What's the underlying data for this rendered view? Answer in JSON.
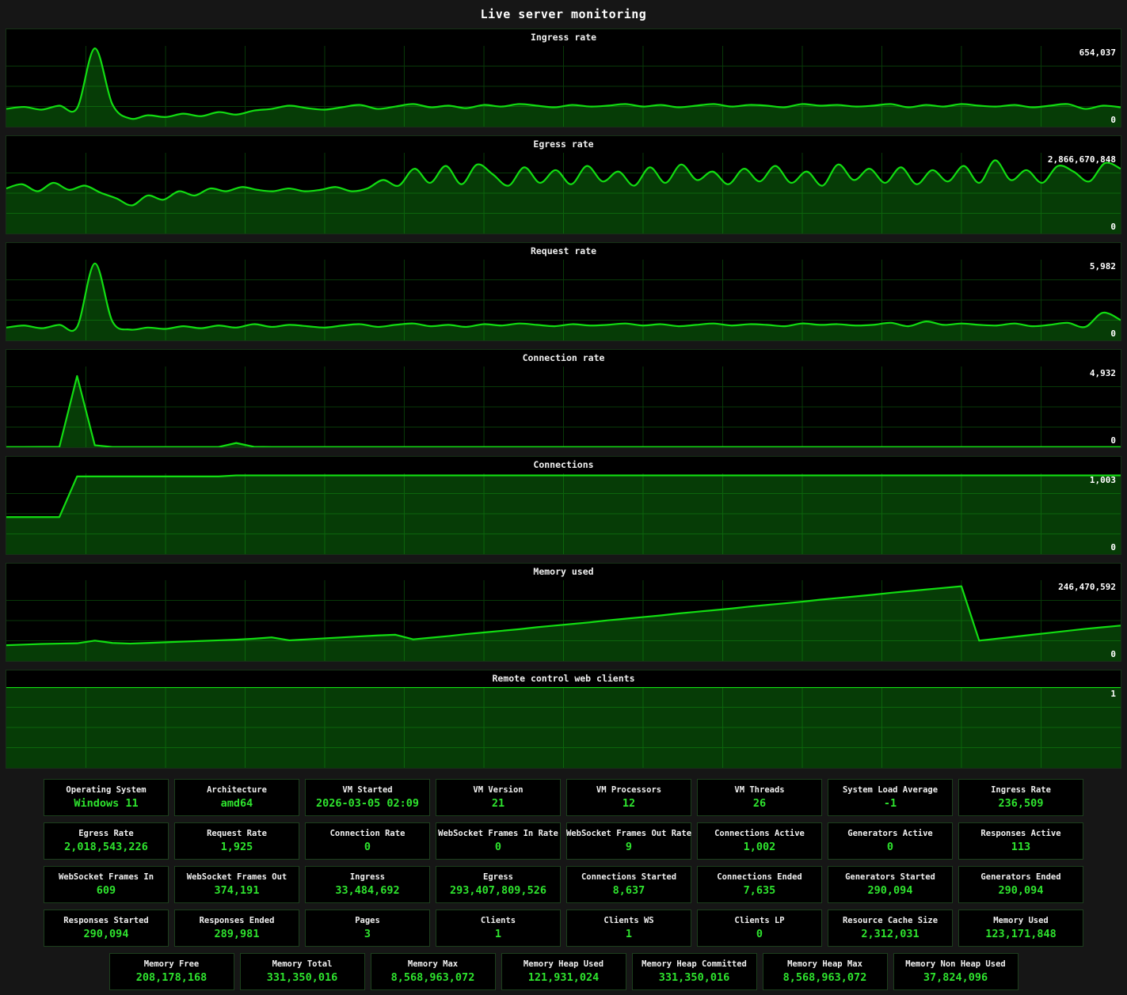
{
  "page": {
    "title": "Live server monitoring"
  },
  "colors": {
    "background": "#161616",
    "panel_bg": "#000000",
    "panel_border": "#163216",
    "line_green": "#12dd12",
    "fill_green": "#063c06",
    "grid_green": "rgba(30,220,30,0.26)",
    "value_green": "#2ee32e",
    "label_white": "#f0f0f0"
  },
  "chart_data": [
    {
      "type": "area",
      "title": "Ingress rate",
      "max_label": "654,037",
      "min_label": "0",
      "ymax": 654037,
      "ylim": [
        0,
        654037
      ],
      "grid": true,
      "smooth": true,
      "values": [
        144000,
        160000,
        138000,
        170000,
        150000,
        634000,
        180000,
        66000,
        92000,
        78000,
        105000,
        85000,
        118000,
        98000,
        130000,
        144000,
        170000,
        150000,
        138000,
        158000,
        176000,
        144000,
        163000,
        183000,
        157000,
        170000,
        150000,
        176000,
        163000,
        183000,
        170000,
        157000,
        176000,
        163000,
        170000,
        183000,
        163000,
        176000,
        157000,
        170000,
        183000,
        163000,
        176000,
        170000,
        157000,
        183000,
        170000,
        176000,
        163000,
        170000,
        183000,
        157000,
        176000,
        163000,
        183000,
        170000,
        163000,
        176000,
        157000,
        170000,
        183000,
        144000,
        170000,
        157000
      ]
    },
    {
      "type": "area",
      "title": "Egress rate",
      "max_label": "2,866,670,848",
      "min_label": "0",
      "ymax": 2866670848,
      "ylim": [
        0,
        2866670848
      ],
      "grid": true,
      "smooth": true,
      "values": [
        1600000000,
        1750000000,
        1500000000,
        1800000000,
        1550000000,
        1700000000,
        1450000000,
        1250000000,
        1000000000,
        1350000000,
        1200000000,
        1500000000,
        1350000000,
        1600000000,
        1500000000,
        1650000000,
        1550000000,
        1500000000,
        1600000000,
        1500000000,
        1550000000,
        1650000000,
        1500000000,
        1600000000,
        1900000000,
        1700000000,
        2300000000,
        1800000000,
        2400000000,
        1750000000,
        2450000000,
        2100000000,
        1700000000,
        2350000000,
        1800000000,
        2250000000,
        1750000000,
        2400000000,
        1850000000,
        2200000000,
        1700000000,
        2350000000,
        1800000000,
        2450000000,
        1900000000,
        2200000000,
        1750000000,
        2300000000,
        1850000000,
        2400000000,
        1800000000,
        2200000000,
        1700000000,
        2450000000,
        1900000000,
        2300000000,
        1800000000,
        2350000000,
        1750000000,
        2250000000,
        1850000000,
        2400000000,
        1800000000,
        2600000000,
        1900000000,
        2250000000,
        1800000000,
        2400000000,
        2200000000,
        1850000000,
        2500000000,
        2300000000
      ]
    },
    {
      "type": "area",
      "title": "Request rate",
      "max_label": "5,982",
      "min_label": "0",
      "ymax": 5982,
      "ylim": [
        0,
        5982
      ],
      "grid": true,
      "smooth": true,
      "values": [
        950,
        1100,
        900,
        1150,
        1000,
        5700,
        1400,
        800,
        950,
        850,
        1050,
        900,
        1100,
        950,
        1200,
        1000,
        1150,
        1050,
        950,
        1100,
        1200,
        1000,
        1150,
        1250,
        1050,
        1150,
        1000,
        1200,
        1100,
        1250,
        1150,
        1050,
        1200,
        1100,
        1150,
        1250,
        1100,
        1200,
        1050,
        1150,
        1250,
        1100,
        1200,
        1150,
        1050,
        1250,
        1150,
        1200,
        1100,
        1150,
        1300,
        1050,
        1400,
        1150,
        1250,
        1150,
        1100,
        1250,
        1050,
        1150,
        1300,
        1000,
        2050,
        1500
      ]
    },
    {
      "type": "area",
      "title": "Connection rate",
      "max_label": "4,932",
      "min_label": "0",
      "ymax": 4932,
      "ylim": [
        0,
        4932
      ],
      "grid": true,
      "smooth": false,
      "values": [
        15,
        15,
        18,
        20,
        4350,
        120,
        15,
        15,
        15,
        15,
        15,
        15,
        15,
        260,
        25,
        15,
        15,
        15,
        15,
        15,
        15,
        15,
        15,
        15,
        15,
        15,
        15,
        15,
        15,
        15,
        15,
        15,
        15,
        15,
        15,
        15,
        15,
        15,
        15,
        15,
        15,
        15,
        15,
        15,
        15,
        15,
        15,
        15,
        15,
        15,
        15,
        15,
        15,
        15,
        15,
        15,
        15,
        15,
        15,
        15,
        15,
        15,
        15,
        15
      ]
    },
    {
      "type": "area",
      "title": "Connections",
      "max_label": "1,003",
      "min_label": "0",
      "ymax": 1003,
      "ylim": [
        0,
        1003
      ],
      "grid": true,
      "smooth": false,
      "values": [
        460,
        460,
        460,
        460,
        965,
        965,
        965,
        965,
        965,
        965,
        965,
        965,
        965,
        978,
        978,
        978,
        978,
        978,
        978,
        978,
        978,
        978,
        978,
        978,
        978,
        978,
        978,
        978,
        978,
        978,
        978,
        978,
        978,
        978,
        978,
        978,
        978,
        978,
        978,
        978,
        978,
        978,
        978,
        978,
        978,
        978,
        978,
        978,
        978,
        978,
        978,
        978,
        978,
        978,
        978,
        978,
        978,
        978,
        978,
        978,
        978,
        978,
        978,
        978
      ]
    },
    {
      "type": "area",
      "title": "Memory used",
      "max_label": "246,470,592",
      "min_label": "0",
      "ymax": 246470592,
      "ylim": [
        0,
        246470592
      ],
      "grid": true,
      "smooth": false,
      "values": [
        48000000,
        50000000,
        52000000,
        53000000,
        54000000,
        62000000,
        55000000,
        53000000,
        55000000,
        57000000,
        59000000,
        61000000,
        63000000,
        65000000,
        68000000,
        72000000,
        63000000,
        66000000,
        69000000,
        72000000,
        75000000,
        78000000,
        80000000,
        66000000,
        71000000,
        76000000,
        82000000,
        87000000,
        92000000,
        97000000,
        103000000,
        108000000,
        113000000,
        118000000,
        124000000,
        129000000,
        134000000,
        139000000,
        145000000,
        150000000,
        155000000,
        160000000,
        166000000,
        171000000,
        176000000,
        181000000,
        187000000,
        192000000,
        197000000,
        202000000,
        208000000,
        213000000,
        218000000,
        223000000,
        228000000,
        62000000,
        68000000,
        74000000,
        80000000,
        86000000,
        92000000,
        98000000,
        103000000,
        108000000
      ]
    },
    {
      "type": "area",
      "title": "Remote control web clients",
      "max_label": "1",
      "min_label": "",
      "ymax": 1,
      "ylim": [
        0,
        1
      ],
      "grid": true,
      "smooth": false,
      "values": [
        1,
        1
      ]
    }
  ],
  "stats": {
    "rows": [
      [
        {
          "label": "Operating System",
          "value": "Windows 11"
        },
        {
          "label": "Architecture",
          "value": "amd64"
        },
        {
          "label": "VM Started",
          "value": "2026-03-05 02:09"
        },
        {
          "label": "VM Version",
          "value": "21"
        },
        {
          "label": "VM Processors",
          "value": "12"
        },
        {
          "label": "VM Threads",
          "value": "26"
        },
        {
          "label": "System Load Average",
          "value": "-1"
        },
        {
          "label": "Ingress Rate",
          "value": "236,509"
        }
      ],
      [
        {
          "label": "Egress Rate",
          "value": "2,018,543,226"
        },
        {
          "label": "Request Rate",
          "value": "1,925"
        },
        {
          "label": "Connection Rate",
          "value": "0"
        },
        {
          "label": "WebSocket Frames In Rate",
          "value": "0"
        },
        {
          "label": "WebSocket Frames Out Rate",
          "value": "9"
        },
        {
          "label": "Connections Active",
          "value": "1,002"
        },
        {
          "label": "Generators Active",
          "value": "0"
        },
        {
          "label": "Responses Active",
          "value": "113"
        }
      ],
      [
        {
          "label": "WebSocket Frames In",
          "value": "609"
        },
        {
          "label": "WebSocket Frames Out",
          "value": "374,191"
        },
        {
          "label": "Ingress",
          "value": "33,484,692"
        },
        {
          "label": "Egress",
          "value": "293,407,809,526"
        },
        {
          "label": "Connections Started",
          "value": "8,637"
        },
        {
          "label": "Connections Ended",
          "value": "7,635"
        },
        {
          "label": "Generators Started",
          "value": "290,094"
        },
        {
          "label": "Generators Ended",
          "value": "290,094"
        }
      ],
      [
        {
          "label": "Responses Started",
          "value": "290,094"
        },
        {
          "label": "Responses Ended",
          "value": "289,981"
        },
        {
          "label": "Pages",
          "value": "3"
        },
        {
          "label": "Clients",
          "value": "1"
        },
        {
          "label": "Clients WS",
          "value": "1"
        },
        {
          "label": "Clients LP",
          "value": "0"
        },
        {
          "label": "Resource Cache Size",
          "value": "2,312,031"
        },
        {
          "label": "Memory Used",
          "value": "123,171,848"
        }
      ],
      [
        {
          "label": "Memory Free",
          "value": "208,178,168"
        },
        {
          "label": "Memory Total",
          "value": "331,350,016"
        },
        {
          "label": "Memory Max",
          "value": "8,568,963,072"
        },
        {
          "label": "Memory Heap Used",
          "value": "121,931,024"
        },
        {
          "label": "Memory Heap Committed",
          "value": "331,350,016"
        },
        {
          "label": "Memory Heap Max",
          "value": "8,568,963,072"
        },
        {
          "label": "Memory Non Heap Used",
          "value": "37,824,096"
        }
      ]
    ]
  }
}
